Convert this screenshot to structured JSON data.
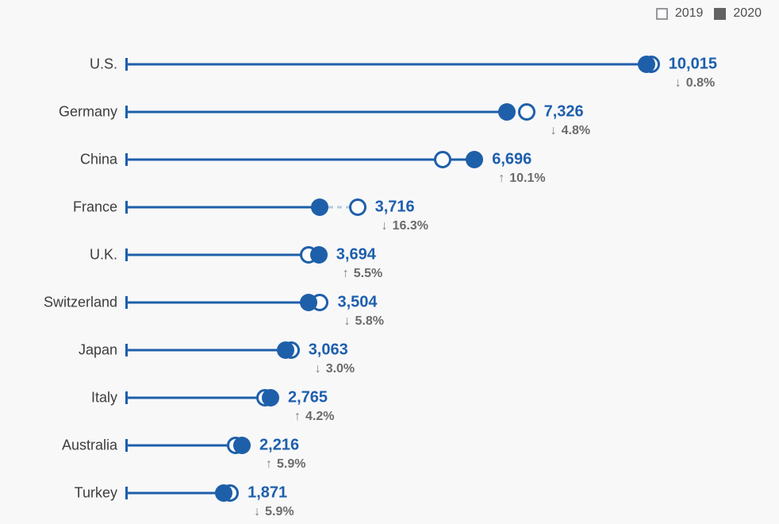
{
  "colors": {
    "accent_blue": "#1e5fa9",
    "value_text": "#1d5fad",
    "dashed_connector": "#b5cbe2",
    "change_text": "#6b6b6b",
    "country_label_text": "#3d3d3d",
    "background": "#f8f8f9",
    "legend_2020_fill": "#616264",
    "legend_2019_border": "#95979a"
  },
  "icons": {
    "arrow_up": "↑",
    "arrow_down": "↓"
  },
  "legend": {
    "items": [
      {
        "label": "2019",
        "swatch": "open-square"
      },
      {
        "label": "2020",
        "swatch": "filled-square"
      }
    ]
  },
  "chart_data": {
    "type": "dumbbell",
    "title": "",
    "xlabel": "",
    "ylabel": "",
    "legend_position": "top-right",
    "grid": false,
    "xlim": [
      0,
      12500
    ],
    "categories": [
      "U.S.",
      "Germany",
      "China",
      "France",
      "U.K.",
      "Switzerland",
      "Japan",
      "Italy",
      "Australia",
      "Turkey"
    ],
    "series": [
      {
        "name": "2019",
        "marker": "open-circle",
        "values_estimated_from_change": [
          10096,
          7695,
          6082,
          4440,
          3501,
          3720,
          3158,
          2654,
          2093,
          1988
        ]
      },
      {
        "name": "2020",
        "marker": "filled-circle",
        "values": [
          10015,
          7326,
          6696,
          3716,
          3694,
          3504,
          3063,
          2765,
          2216,
          1871
        ]
      }
    ],
    "rows": [
      {
        "country": "U.S.",
        "value_2020": 10015,
        "value_label": "10,015",
        "change_direction": "down",
        "change_label": "0.8%",
        "change_pct": -0.8,
        "value_2019_est": 10096
      },
      {
        "country": "Germany",
        "value_2020": 7326,
        "value_label": "7,326",
        "change_direction": "down",
        "change_label": "4.8%",
        "change_pct": -4.8,
        "value_2019_est": 7695
      },
      {
        "country": "China",
        "value_2020": 6696,
        "value_label": "6,696",
        "change_direction": "up",
        "change_label": "10.1%",
        "change_pct": 10.1,
        "value_2019_est": 6082
      },
      {
        "country": "France",
        "value_2020": 3716,
        "value_label": "3,716",
        "change_direction": "down",
        "change_label": "16.3%",
        "change_pct": -16.3,
        "value_2019_est": 4440
      },
      {
        "country": "U.K.",
        "value_2020": 3694,
        "value_label": "3,694",
        "change_direction": "up",
        "change_label": "5.5%",
        "change_pct": 5.5,
        "value_2019_est": 3501
      },
      {
        "country": "Switzerland",
        "value_2020": 3504,
        "value_label": "3,504",
        "change_direction": "down",
        "change_label": "5.8%",
        "change_pct": -5.8,
        "value_2019_est": 3720
      },
      {
        "country": "Japan",
        "value_2020": 3063,
        "value_label": "3,063",
        "change_direction": "down",
        "change_label": "3.0%",
        "change_pct": -3.0,
        "value_2019_est": 3158
      },
      {
        "country": "Italy",
        "value_2020": 2765,
        "value_label": "2,765",
        "change_direction": "up",
        "change_label": "4.2%",
        "change_pct": 4.2,
        "value_2019_est": 2654
      },
      {
        "country": "Australia",
        "value_2020": 2216,
        "value_label": "2,216",
        "change_direction": "up",
        "change_label": "5.9%",
        "change_pct": 5.9,
        "value_2019_est": 2093
      },
      {
        "country": "Turkey",
        "value_2020": 1871,
        "value_label": "1,871",
        "change_direction": "down",
        "change_label": "5.9%",
        "change_pct": -5.9,
        "value_2019_est": 1988
      }
    ]
  }
}
